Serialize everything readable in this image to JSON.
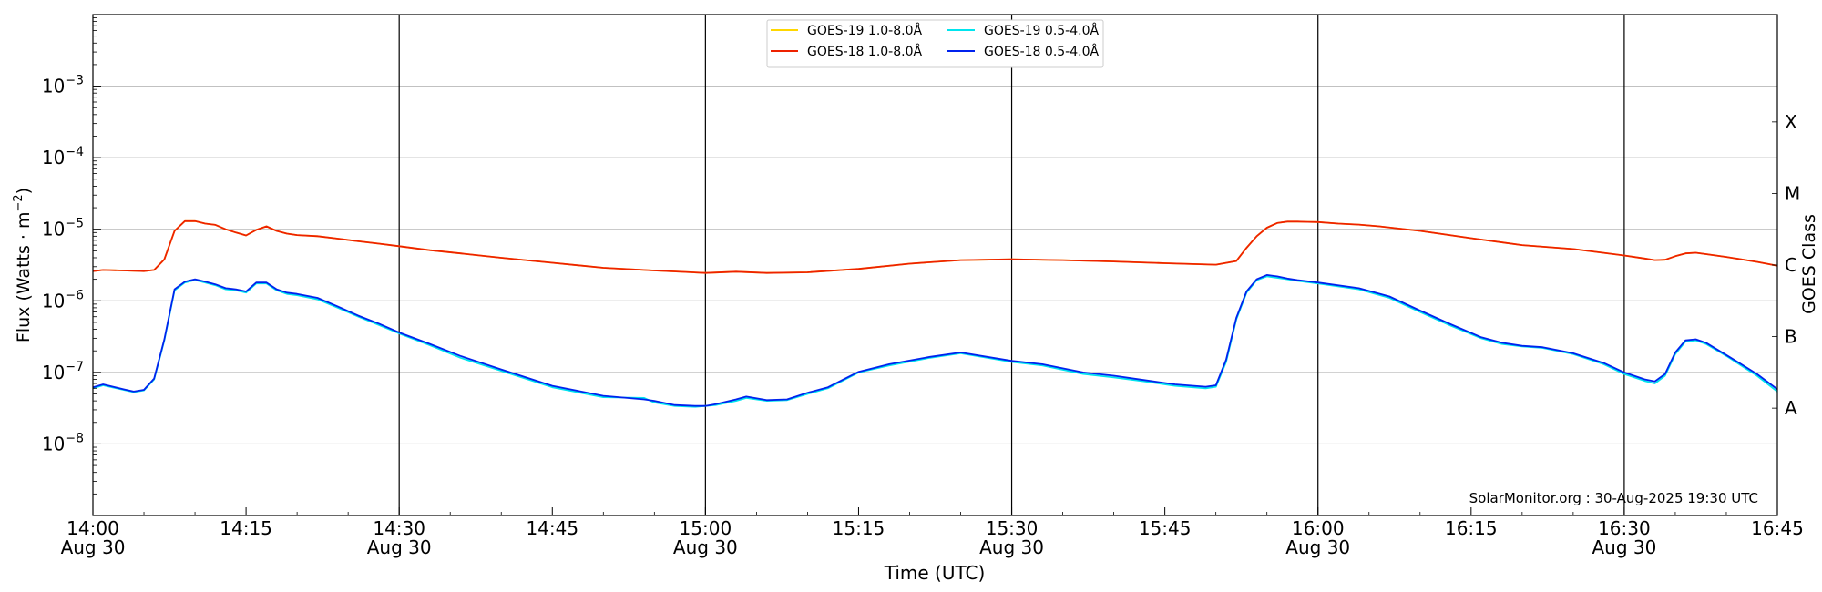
{
  "chart_data": {
    "type": "line",
    "xlabel": "Time (UTC)",
    "ylabel_main": "Flux (Watts · m",
    "ylabel_sup": "−2",
    "ylabel_close": ")",
    "right_label": "GOES Class",
    "yscale": "log",
    "ylim": [
      1e-09,
      0.01
    ],
    "xlim_minutes_from_start": [
      0,
      165
    ],
    "x_ticks": [
      {
        "label": "14:00",
        "sub": "Aug 30",
        "t": 0
      },
      {
        "label": "14:15",
        "sub": "",
        "t": 15
      },
      {
        "label": "14:30",
        "sub": "Aug 30",
        "t": 30
      },
      {
        "label": "14:45",
        "sub": "",
        "t": 45
      },
      {
        "label": "15:00",
        "sub": "Aug 30",
        "t": 60
      },
      {
        "label": "15:15",
        "sub": "",
        "t": 75
      },
      {
        "label": "15:30",
        "sub": "Aug 30",
        "t": 90
      },
      {
        "label": "15:45",
        "sub": "",
        "t": 105
      },
      {
        "label": "16:00",
        "sub": "Aug 30",
        "t": 120
      },
      {
        "label": "16:15",
        "sub": "",
        "t": 135
      },
      {
        "label": "16:30",
        "sub": "Aug 30",
        "t": 150
      },
      {
        "label": "16:45",
        "sub": "",
        "t": 165
      }
    ],
    "y_ticks": [
      {
        "exp": "-3",
        "value": 0.001
      },
      {
        "exp": "-4",
        "value": 0.0001
      },
      {
        "exp": "-5",
        "value": 1e-05
      },
      {
        "exp": "-6",
        "value": 1e-06
      },
      {
        "exp": "-7",
        "value": 1e-07
      },
      {
        "exp": "-8",
        "value": 1e-08
      }
    ],
    "goes_classes": [
      {
        "label": "X",
        "value": 0.0001
      },
      {
        "label": "M",
        "value": 1e-05
      },
      {
        "label": "C",
        "value": 1e-06
      },
      {
        "label": "B",
        "value": 1e-07
      },
      {
        "label": "A",
        "value": 1e-08
      }
    ],
    "vertical_lines_t": [
      30,
      60,
      90,
      120,
      150
    ],
    "grid": "horizontal at decades",
    "legend_position": "top-center",
    "legend": [
      {
        "name": "GOES-19 1.0-8.0Å",
        "color": "#ffd700"
      },
      {
        "name": "GOES-19 0.5-4.0Å",
        "color": "#00e5ee"
      },
      {
        "name": "GOES-18 1.0-8.0Å",
        "color": "#ee2200"
      },
      {
        "name": "GOES-18 0.5-4.0Å",
        "color": "#0022ee"
      }
    ],
    "series": [
      {
        "name": "GOES-19 1.0-8.0Å",
        "color": "#ffd700",
        "x": [
          0,
          1,
          3,
          5,
          6,
          7,
          8,
          9,
          10,
          11,
          12,
          13,
          14,
          15,
          16,
          17,
          18,
          19,
          20,
          22,
          24,
          26,
          28,
          30,
          33,
          36,
          40,
          45,
          50,
          55,
          60,
          63,
          66,
          70,
          75,
          80,
          85,
          90,
          95,
          100,
          105,
          110,
          112,
          113,
          114,
          115,
          116,
          117,
          118,
          119,
          120,
          122,
          124,
          126,
          130,
          135,
          140,
          145,
          150,
          152,
          153,
          154,
          155,
          156,
          157,
          158,
          160,
          163,
          165
        ],
        "y": [
          2.6e-06,
          2.7e-06,
          2.65e-06,
          2.6e-06,
          2.7e-06,
          3.8e-06,
          9.5e-06,
          1.3e-05,
          1.3e-05,
          1.2e-05,
          1.15e-05,
          1e-05,
          9e-06,
          8.2e-06,
          9.8e-06,
          1.1e-05,
          9.5e-06,
          8.7e-06,
          8.3e-06,
          8e-06,
          7.4e-06,
          6.8e-06,
          6.3e-06,
          5.8e-06,
          5.1e-06,
          4.6e-06,
          4e-06,
          3.4e-06,
          2.9e-06,
          2.65e-06,
          2.45e-06,
          2.55e-06,
          2.45e-06,
          2.5e-06,
          2.8e-06,
          3.3e-06,
          3.7e-06,
          3.8e-06,
          3.7e-06,
          3.55e-06,
          3.35e-06,
          3.2e-06,
          3.6e-06,
          5.5e-06,
          8e-06,
          1.05e-05,
          1.22e-05,
          1.28e-05,
          1.28e-05,
          1.27e-05,
          1.26e-05,
          1.2e-05,
          1.16e-05,
          1.1e-05,
          9.5e-06,
          7.5e-06,
          6e-06,
          5.3e-06,
          4.3e-06,
          3.9e-06,
          3.7e-06,
          3.75e-06,
          4.2e-06,
          4.6e-06,
          4.7e-06,
          4.5e-06,
          4.1e-06,
          3.5e-06,
          3.1e-06
        ]
      },
      {
        "name": "GOES-19 0.5-4.0Å",
        "color": "#00e5ee",
        "x": [
          0,
          1,
          3,
          4,
          5,
          6,
          7,
          8,
          9,
          10,
          11,
          12,
          13,
          14,
          15,
          16,
          17,
          18,
          19,
          20,
          22,
          24,
          26,
          28,
          30,
          33,
          36,
          40,
          45,
          50,
          54,
          55,
          57,
          59,
          60,
          61,
          63,
          64,
          66,
          68,
          70,
          72,
          75,
          78,
          82,
          85,
          90,
          93,
          97,
          100,
          103,
          106,
          109,
          110,
          111,
          112,
          113,
          114,
          115,
          116,
          117,
          118,
          120,
          124,
          127,
          130,
          133,
          136,
          138,
          140,
          142,
          145,
          148,
          150,
          152,
          153,
          154,
          155,
          156,
          157,
          158,
          160,
          163,
          165
        ],
        "y": [
          6e-08,
          6.6e-08,
          5.7e-08,
          5.3e-08,
          5.6e-08,
          8e-08,
          2.8e-07,
          1.4e-06,
          1.8e-06,
          1.95e-06,
          1.8e-06,
          1.65e-06,
          1.45e-06,
          1.4e-06,
          1.3e-06,
          1.75e-06,
          1.75e-06,
          1.4e-06,
          1.25e-06,
          1.2e-06,
          1.05e-06,
          8e-07,
          6e-07,
          4.6e-07,
          3.5e-07,
          2.4e-07,
          1.6e-07,
          1.05e-07,
          6.2e-08,
          4.5e-08,
          4.4e-08,
          3.8e-08,
          3.4e-08,
          3.3e-08,
          3.4e-08,
          3.5e-08,
          4e-08,
          4.4e-08,
          4e-08,
          4.1e-08,
          5e-08,
          6e-08,
          1e-07,
          1.25e-07,
          1.6e-07,
          1.85e-07,
          1.4e-07,
          1.25e-07,
          9.5e-08,
          8.5e-08,
          7.5e-08,
          6.5e-08,
          6e-08,
          6.3e-08,
          1.4e-07,
          5.5e-07,
          1.3e-06,
          1.95e-06,
          2.2e-06,
          2.1e-06,
          2e-06,
          1.9e-06,
          1.75e-06,
          1.45e-06,
          1.1e-06,
          7e-07,
          4.5e-07,
          3e-07,
          2.5e-07,
          2.3e-07,
          2.2e-07,
          1.8e-07,
          1.3e-07,
          9.5e-08,
          7.6e-08,
          7e-08,
          9e-08,
          1.8e-07,
          2.7e-07,
          2.8e-07,
          2.5e-07,
          1.7e-07,
          9e-08,
          5.4e-08
        ]
      },
      {
        "name": "GOES-18 1.0-8.0Å",
        "color": "#ee2200",
        "x": [
          0,
          1,
          3,
          5,
          6,
          7,
          8,
          9,
          10,
          11,
          12,
          13,
          14,
          15,
          16,
          17,
          18,
          19,
          20,
          22,
          24,
          26,
          28,
          30,
          33,
          36,
          40,
          45,
          50,
          55,
          60,
          63,
          66,
          70,
          75,
          80,
          85,
          90,
          95,
          100,
          105,
          110,
          112,
          113,
          114,
          115,
          116,
          117,
          118,
          119,
          120,
          122,
          124,
          126,
          130,
          135,
          140,
          145,
          150,
          152,
          153,
          154,
          155,
          156,
          157,
          158,
          160,
          163,
          165
        ],
        "y": [
          2.6e-06,
          2.7e-06,
          2.65e-06,
          2.6e-06,
          2.7e-06,
          3.8e-06,
          9.5e-06,
          1.3e-05,
          1.3e-05,
          1.2e-05,
          1.15e-05,
          1e-05,
          9e-06,
          8.2e-06,
          9.8e-06,
          1.1e-05,
          9.5e-06,
          8.7e-06,
          8.3e-06,
          8e-06,
          7.4e-06,
          6.8e-06,
          6.3e-06,
          5.8e-06,
          5.1e-06,
          4.6e-06,
          4e-06,
          3.4e-06,
          2.9e-06,
          2.65e-06,
          2.45e-06,
          2.55e-06,
          2.45e-06,
          2.5e-06,
          2.8e-06,
          3.3e-06,
          3.7e-06,
          3.8e-06,
          3.7e-06,
          3.55e-06,
          3.35e-06,
          3.2e-06,
          3.6e-06,
          5.5e-06,
          8e-06,
          1.05e-05,
          1.22e-05,
          1.28e-05,
          1.28e-05,
          1.27e-05,
          1.26e-05,
          1.2e-05,
          1.16e-05,
          1.1e-05,
          9.5e-06,
          7.5e-06,
          6e-06,
          5.3e-06,
          4.3e-06,
          3.9e-06,
          3.7e-06,
          3.75e-06,
          4.2e-06,
          4.6e-06,
          4.7e-06,
          4.5e-06,
          4.1e-06,
          3.5e-06,
          3.1e-06
        ]
      },
      {
        "name": "GOES-18 0.5-4.0Å",
        "color": "#0022ee",
        "x": [
          0,
          1,
          3,
          4,
          5,
          6,
          7,
          8,
          9,
          10,
          11,
          12,
          13,
          14,
          15,
          16,
          17,
          18,
          19,
          20,
          22,
          24,
          26,
          28,
          30,
          33,
          36,
          40,
          45,
          50,
          54,
          55,
          57,
          59,
          60,
          61,
          63,
          64,
          66,
          68,
          70,
          72,
          75,
          78,
          82,
          85,
          90,
          93,
          97,
          100,
          103,
          106,
          109,
          110,
          111,
          112,
          113,
          114,
          115,
          116,
          117,
          118,
          120,
          124,
          127,
          130,
          133,
          136,
          138,
          140,
          142,
          145,
          148,
          150,
          152,
          153,
          154,
          155,
          156,
          157,
          158,
          160,
          163,
          165
        ],
        "y": [
          6.2e-08,
          6.8e-08,
          5.8e-08,
          5.4e-08,
          5.7e-08,
          8.2e-08,
          2.9e-07,
          1.45e-06,
          1.85e-06,
          2e-06,
          1.85e-06,
          1.7e-06,
          1.5e-06,
          1.45e-06,
          1.35e-06,
          1.8e-06,
          1.8e-06,
          1.45e-06,
          1.3e-06,
          1.25e-06,
          1.1e-06,
          8.3e-07,
          6.2e-07,
          4.8e-07,
          3.6e-07,
          2.5e-07,
          1.7e-07,
          1.1e-07,
          6.5e-08,
          4.7e-08,
          4.2e-08,
          4e-08,
          3.5e-08,
          3.4e-08,
          3.4e-08,
          3.6e-08,
          4.2e-08,
          4.6e-08,
          4.1e-08,
          4.2e-08,
          5.2e-08,
          6.2e-08,
          1.02e-07,
          1.3e-07,
          1.65e-07,
          1.9e-07,
          1.45e-07,
          1.3e-07,
          1e-07,
          9e-08,
          7.8e-08,
          6.8e-08,
          6.3e-08,
          6.6e-08,
          1.5e-07,
          5.8e-07,
          1.35e-06,
          2e-06,
          2.3e-06,
          2.2e-06,
          2.05e-06,
          1.95e-06,
          1.8e-06,
          1.5e-06,
          1.15e-06,
          7.3e-07,
          4.7e-07,
          3.1e-07,
          2.6e-07,
          2.35e-07,
          2.25e-07,
          1.85e-07,
          1.35e-07,
          1e-07,
          8e-08,
          7.5e-08,
          9.5e-08,
          1.9e-07,
          2.8e-07,
          2.9e-07,
          2.6e-07,
          1.75e-07,
          9.5e-08,
          5.8e-08
        ]
      }
    ],
    "annotation": "SolarMonitor.org : 30-Aug-2025 19:30 UTC"
  }
}
